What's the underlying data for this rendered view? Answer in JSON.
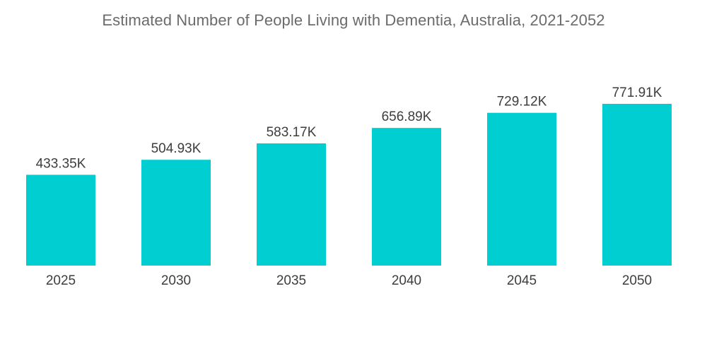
{
  "chart_data": {
    "type": "bar",
    "title": "Estimated Number of People Living with Dementia, Australia, 2021-2052",
    "categories": [
      "2025",
      "2030",
      "2035",
      "2040",
      "2045",
      "2050"
    ],
    "values": [
      433.35,
      504.93,
      583.17,
      656.89,
      729.12,
      771.91
    ],
    "value_labels": [
      "433.35K",
      "504.93K",
      "583.17K",
      "656.89K",
      "729.12K",
      "771.91K"
    ],
    "xlabel": "",
    "ylabel": "",
    "ylim": [
      0,
      771.91
    ],
    "grid": false,
    "legend": "none",
    "colors": {
      "bar": "#00ced1",
      "title": "#6b6b6b",
      "text": "#3d3d3d"
    }
  }
}
